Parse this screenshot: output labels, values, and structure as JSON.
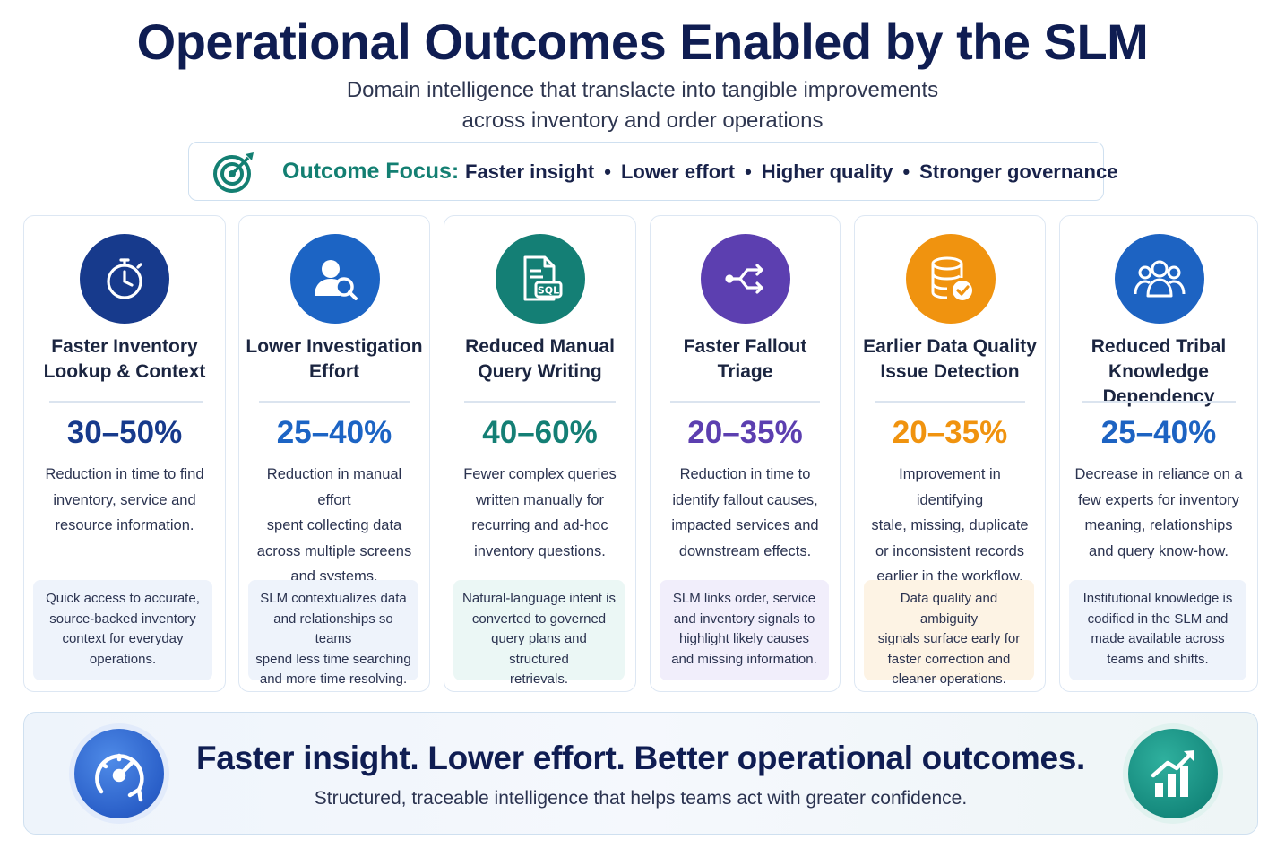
{
  "header": {
    "title": "Operational Outcomes Enabled by the SLM",
    "subtitle_line1": "Domain intelligence that translacte into tangible improvements",
    "subtitle_line2": "across inventory and order operations"
  },
  "focus": {
    "icon": "target-icon",
    "label": "Outcome Focus:",
    "items": [
      "Faster insight",
      "Lower effort",
      "Higher quality",
      "Stronger governance"
    ],
    "separator": "•"
  },
  "cards": [
    {
      "icon": "stopwatch-icon",
      "color": "#173a8c",
      "title_line1": "Faster Inventory",
      "title_line2": "Lookup & Context",
      "metric": "30–50%",
      "desc_lines": [
        "Reduction in time to find",
        "inventory, service and",
        "resource information."
      ],
      "box_lines": [
        "Quick access to accurate,",
        "source-backed inventory",
        "context for everyday",
        "operations."
      ],
      "box_bg": "#eef3fb"
    },
    {
      "icon": "user-search-icon",
      "color": "#1c64c4",
      "title_line1": "Lower Investigation",
      "title_line2": "Effort",
      "metric": "25–40%",
      "desc_lines": [
        "Reduction in manual effort",
        "spent collecting data",
        "across multiple screens",
        "and systems."
      ],
      "box_lines": [
        "SLM contextualizes data",
        "and relationships so teams",
        "spend less time searching",
        "and more time resolving."
      ],
      "box_bg": "#eef3fb"
    },
    {
      "icon": "sql-document-icon",
      "color": "#147f75",
      "title_line1": "Reduced Manual",
      "title_line2": "Query Writing",
      "metric": "40–60%",
      "desc_lines": [
        "Fewer complex queries",
        "written manually for",
        "recurring and ad-hoc",
        "inventory questions."
      ],
      "box_lines": [
        "Natural-language intent is",
        "converted to governed",
        "query plans and structured",
        "retrievals."
      ],
      "box_bg": "#ebf7f5"
    },
    {
      "icon": "branch-arrows-icon",
      "color": "#5c3fb0",
      "title_line1": "Faster Fallout",
      "title_line2": "Triage",
      "metric": "20–35%",
      "desc_lines": [
        "Reduction in time to",
        "identify fallout causes,",
        "impacted services and",
        "downstream effects."
      ],
      "box_lines": [
        "SLM links order, service",
        "and inventory signals to",
        "highlight likely causes",
        "and missing information."
      ],
      "box_bg": "#f1eefb"
    },
    {
      "icon": "database-check-icon",
      "color": "#f0930f",
      "title_line1": "Earlier Data Quality",
      "title_line2": "Issue Detection",
      "metric": "20–35%",
      "desc_lines": [
        "Improvement in identifying",
        "stale, missing, duplicate",
        "or inconsistent records",
        "earlier in the workflow."
      ],
      "box_lines": [
        "Data quality and ambiguity",
        "signals surface early for",
        "faster correction and",
        "cleaner operations."
      ],
      "box_bg": "#fdf3e4"
    },
    {
      "icon": "team-icon",
      "color": "#1d63c2",
      "title_line1": "Reduced Tribal",
      "title_line2": "Knowledge Dependency",
      "metric": "25–40%",
      "desc_lines": [
        "Decrease in reliance on a",
        "few experts for inventory",
        "meaning, relationships",
        "and query know-how."
      ],
      "box_lines": [
        "Institutional knowledge is",
        "codified in the SLM and",
        "made available across",
        "teams and shifts."
      ],
      "box_bg": "#eef3fb"
    }
  ],
  "footer": {
    "left_icon": "speedometer-icon",
    "right_icon": "growth-chart-icon",
    "headline": "Faster insight. Lower effort. Better operational outcomes.",
    "tagline": "Structured, traceable intelligence that helps teams act with greater confidence."
  }
}
